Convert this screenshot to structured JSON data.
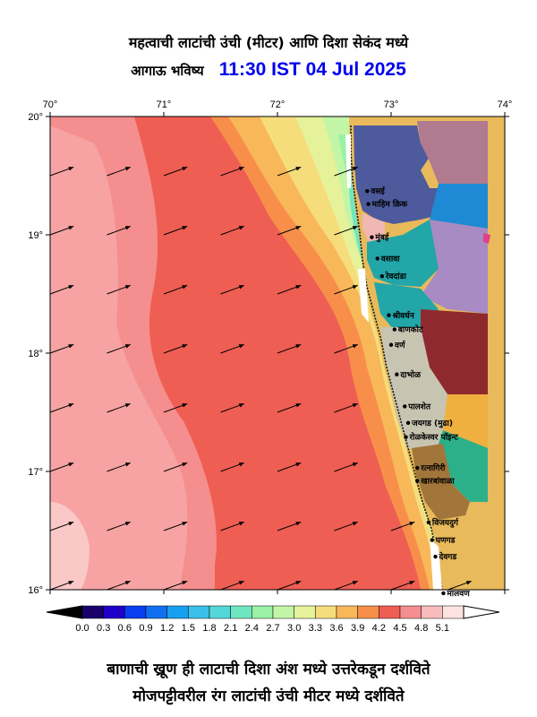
{
  "title_line1": "महत्वाची लाटांची उंची (मीटर) आणि दिशा सेकंद मध्ये",
  "title_line2": "आगाऊ भविष्य",
  "forecast_time": "11:30 IST 04 Jul 2025",
  "lon_ticks": [
    "70°",
    "71°",
    "72°",
    "73°",
    "74°"
  ],
  "lat_ticks": [
    "20°",
    "19°",
    "18°",
    "17°",
    "16°"
  ],
  "colorbar": {
    "labels": [
      "0.0",
      "0.3",
      "0.6",
      "0.9",
      "1.2",
      "1.5",
      "1.8",
      "2.1",
      "2.4",
      "2.7",
      "3.0",
      "3.3",
      "3.6",
      "3.9",
      "4.2",
      "4.5",
      "4.8",
      "5.1"
    ],
    "colors": [
      "#1a006b",
      "#1f00c8",
      "#0a3ef0",
      "#1270f0",
      "#17a0f0",
      "#3bbfe8",
      "#55d7d9",
      "#6fe6c0",
      "#9af2a6",
      "#c3f5a6",
      "#e5f29a",
      "#f6dd7c",
      "#f8b85a",
      "#f78f4a",
      "#ef5e53",
      "#f58e8e",
      "#f9bcbc",
      "#fde2e2"
    ]
  },
  "place_labels": [
    {
      "name": "वसई",
      "lon": 72.79,
      "lat": 19.37
    },
    {
      "name": "माहिम क्रिक",
      "lon": 72.8,
      "lat": 19.26
    },
    {
      "name": "मुंबई",
      "lon": 72.83,
      "lat": 18.98
    },
    {
      "name": "वसावा",
      "lon": 72.88,
      "lat": 18.8
    },
    {
      "name": "रेवदांडा",
      "lon": 72.92,
      "lat": 18.65
    },
    {
      "name": "श्रीवर्धन",
      "lon": 72.98,
      "lat": 18.32
    },
    {
      "name": "बाणकोट",
      "lon": 73.03,
      "lat": 18.2
    },
    {
      "name": "वर्ण",
      "lon": 73.0,
      "lat": 18.07
    },
    {
      "name": "दाभोळ",
      "lon": 73.05,
      "lat": 17.82
    },
    {
      "name": "पालशेत",
      "lon": 73.12,
      "lat": 17.55
    },
    {
      "name": "जयगड (मुढा)",
      "lon": 73.15,
      "lat": 17.41
    },
    {
      "name": "रोळकेस्वर पॉइन्ट",
      "lon": 73.13,
      "lat": 17.29
    },
    {
      "name": "रत्नागिरी",
      "lon": 73.23,
      "lat": 17.03
    },
    {
      "name": "खारबांवाळा",
      "lon": 73.23,
      "lat": 16.92
    },
    {
      "name": "विजयदुर्ग",
      "lon": 73.33,
      "lat": 16.57
    },
    {
      "name": "घणगड",
      "lon": 73.36,
      "lat": 16.42
    },
    {
      "name": "देवगड",
      "lon": 73.39,
      "lat": 16.28
    },
    {
      "name": "मालवण",
      "lon": 73.46,
      "lat": 15.97
    }
  ],
  "arrow_direction_deg": 250,
  "footnote_line1": "बाणाची ख्रूण ही लाटाची दिशा अंश मध्ये उत्तरेकडून दर्शविते",
  "footnote_line2": "मोजपट्टीवरील रंग लाटांची उंची मीटर मध्ये दर्शविते"
}
